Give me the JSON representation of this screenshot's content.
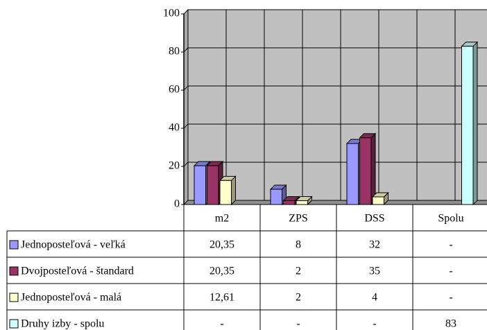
{
  "chart_data": {
    "type": "bar3d",
    "categories": [
      "m2",
      "ZPS",
      "DSS",
      "Spolu"
    ],
    "series": [
      {
        "name": "Jednoposteľová - veľká",
        "color": "#9999ff",
        "values": [
          20.35,
          8,
          32,
          null
        ],
        "value_labels": [
          "20,35",
          "8",
          "32",
          "-"
        ]
      },
      {
        "name": "Dvojposteľová - štandard",
        "color": "#993366",
        "values": [
          20.35,
          2,
          35,
          null
        ],
        "value_labels": [
          "20,35",
          "2",
          "35",
          "-"
        ]
      },
      {
        "name": "Jednoposteľová - malá",
        "color": "#ffffcc",
        "values": [
          12.61,
          2,
          4,
          null
        ],
        "value_labels": [
          "12,61",
          "2",
          "4",
          "-"
        ]
      },
      {
        "name": "Druhy izby - spolu",
        "color": "#ccffff",
        "values": [
          null,
          null,
          null,
          83
        ],
        "value_labels": [
          "-",
          "-",
          "-",
          "83"
        ]
      }
    ],
    "ylim": [
      0,
      100
    ],
    "yticks": [
      0,
      20,
      40,
      60,
      80,
      100
    ],
    "grid": true
  }
}
